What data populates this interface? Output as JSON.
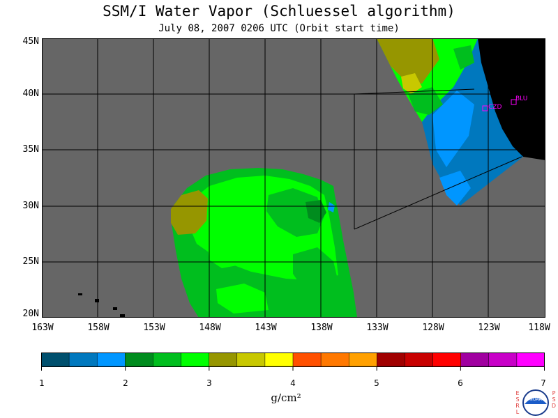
{
  "title": "SSM/I Water Vapor (Schluessel algorithm)",
  "subtitle": "July 08, 2007  0206 UTC  (Orbit start time)",
  "map": {
    "lat_labels": [
      "45N",
      "40N",
      "35N",
      "30N",
      "25N",
      "20N"
    ],
    "lon_labels": [
      "163W",
      "158W",
      "153W",
      "148W",
      "143W",
      "138W",
      "133W",
      "128W",
      "123W",
      "118W"
    ],
    "stations": [
      {
        "code": "CZD"
      },
      {
        "code": "BLU"
      }
    ],
    "colors": {
      "no_data": "#666666",
      "land": "#000000",
      "frame": "#000000"
    }
  },
  "colorbar": {
    "colors": [
      "#00506e",
      "#0078be",
      "#0096ff",
      "#008c1e",
      "#00be1e",
      "#00ff00",
      "#969600",
      "#c8c800",
      "#ffff00",
      "#ff5000",
      "#ff7800",
      "#ffa000",
      "#a00000",
      "#c80000",
      "#ff0000",
      "#a000a0",
      "#c800c8",
      "#ff00ff"
    ],
    "ticks": [
      "1",
      "2",
      "3",
      "4",
      "5",
      "6",
      "7"
    ],
    "unit": "g/cm²"
  },
  "logo": {
    "left_letters": [
      "E",
      "S",
      "R",
      "L"
    ],
    "right_letters": [
      "P",
      "S",
      "D"
    ],
    "badge": "NOAA"
  }
}
